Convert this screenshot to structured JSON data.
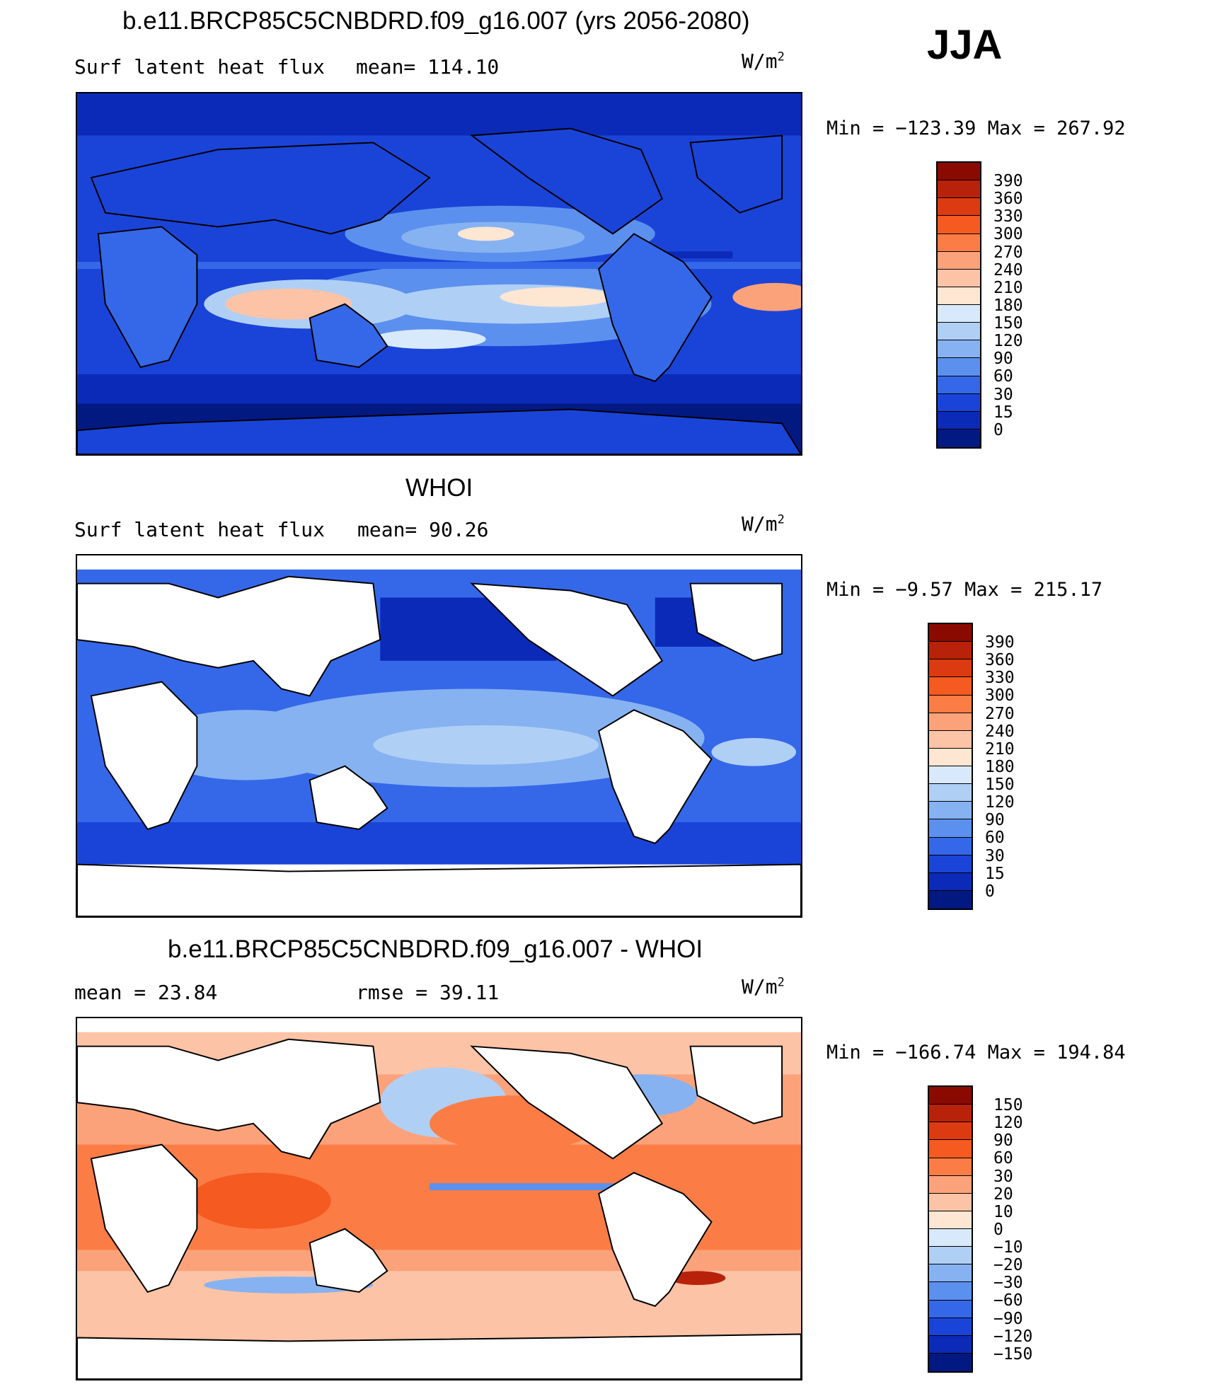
{
  "season": "JJA",
  "panels": [
    {
      "title": "b.e11.BRCP85C5CNBDRD.f09_g16.007 (yrs 2056-2080)",
      "left_label": "Surf latent heat flux",
      "stat_label": "mean= 114.10",
      "units": "W/m",
      "units_sup": "2",
      "minmax": "Min = −123.39 Max = 267.92",
      "colorbar": {
        "labels": [
          "390",
          "360",
          "330",
          "300",
          "270",
          "240",
          "210",
          "180",
          "150",
          "120",
          "90",
          "60",
          "30",
          "15",
          "0"
        ],
        "colors": [
          "#8b0a00",
          "#b8220a",
          "#dc3a10",
          "#f55a20",
          "#fb7d45",
          "#fca27a",
          "#fdc3a6",
          "#fde6d2",
          "#d7e9fb",
          "#b0cff5",
          "#86b2f2",
          "#5c90ee",
          "#3568e8",
          "#1a44d8",
          "#0c2ab8",
          "#021982"
        ]
      }
    },
    {
      "title": "WHOI",
      "left_label": "Surf latent heat flux",
      "stat_label": "mean=   90.26",
      "units": "W/m",
      "units_sup": "2",
      "minmax": "Min =  −9.57 Max = 215.17",
      "colorbar": {
        "labels": [
          "390",
          "360",
          "330",
          "300",
          "270",
          "240",
          "210",
          "180",
          "150",
          "120",
          "90",
          "60",
          "30",
          "15",
          "0"
        ],
        "colors": [
          "#8b0a00",
          "#b8220a",
          "#dc3a10",
          "#f55a20",
          "#fb7d45",
          "#fca27a",
          "#fdc3a6",
          "#fde6d2",
          "#d7e9fb",
          "#b0cff5",
          "#86b2f2",
          "#5c90ee",
          "#3568e8",
          "#1a44d8",
          "#0c2ab8",
          "#021982"
        ]
      }
    },
    {
      "title": "b.e11.BRCP85C5CNBDRD.f09_g16.007 - WHOI",
      "left_label": "mean =   23.84",
      "stat_label": "rmse =   39.11",
      "units": "W/m",
      "units_sup": "2",
      "minmax": "Min = −166.74 Max = 194.84",
      "colorbar": {
        "labels": [
          "150",
          "120",
          "90",
          "60",
          "30",
          "20",
          "10",
          "0",
          "−10",
          "−20",
          "−30",
          "−60",
          "−90",
          "−120",
          "−150"
        ],
        "colors": [
          "#8b0a00",
          "#b8220a",
          "#dc3a10",
          "#f55a20",
          "#fb7d45",
          "#fca27a",
          "#fdc3a6",
          "#fde6d2",
          "#d7e9fb",
          "#b0cff5",
          "#86b2f2",
          "#5c90ee",
          "#3568e8",
          "#1a44d8",
          "#0c2ab8",
          "#021982"
        ]
      }
    }
  ]
}
